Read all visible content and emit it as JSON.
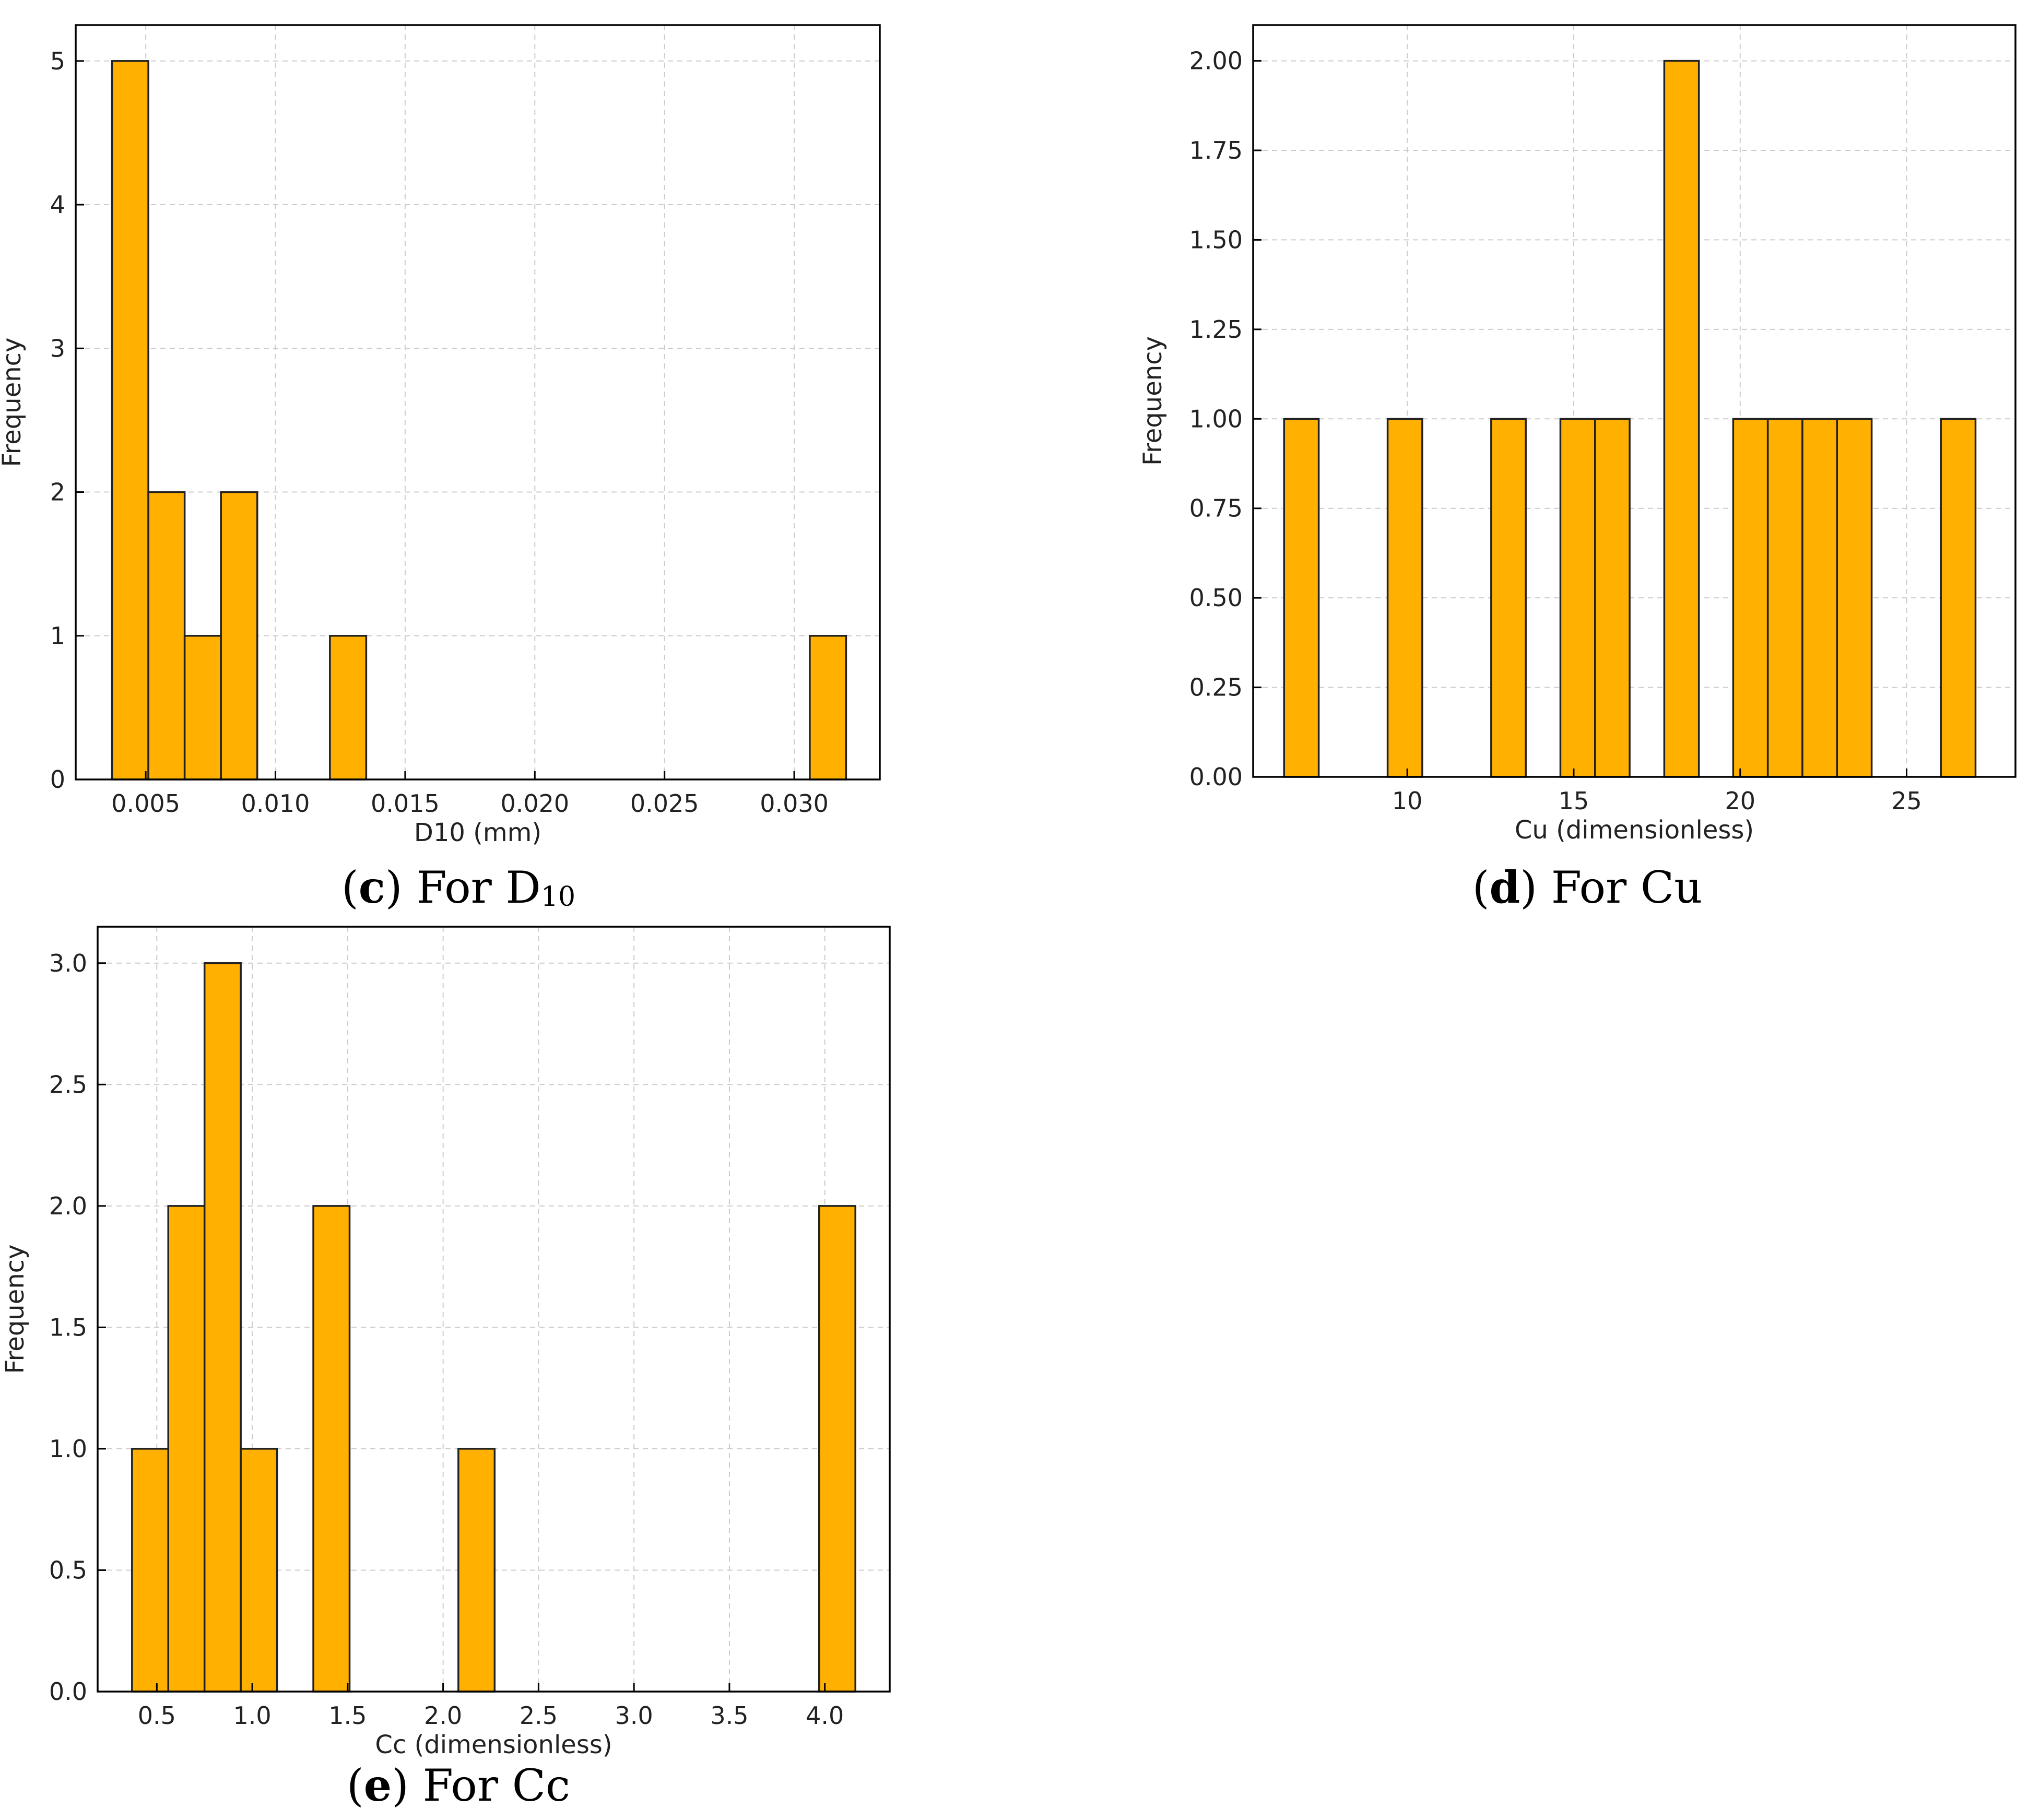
{
  "colors": {
    "bar_fill": "#ffb000",
    "bar_edge": "#222222",
    "grid": "#cccccc",
    "axis": "#000000"
  },
  "captions": {
    "c": {
      "letter": "c",
      "text": "For D",
      "sub": "10"
    },
    "d": {
      "letter": "d",
      "text": "For Cu"
    },
    "e": {
      "letter": "e",
      "text": "For Cc"
    }
  },
  "chart_data": [
    {
      "id": "c",
      "type": "bar",
      "title": "",
      "xlabel": "D10 (mm)",
      "ylabel": "Frequency",
      "xlim": [
        0.0023,
        0.0333
      ],
      "ylim": [
        0,
        5.25
      ],
      "xticks": [
        0.005,
        0.01,
        0.015,
        0.02,
        0.025,
        0.03
      ],
      "xtick_labels": [
        "0.005",
        "0.010",
        "0.015",
        "0.020",
        "0.025",
        "0.030"
      ],
      "yticks": [
        0,
        1,
        2,
        3,
        4,
        5
      ],
      "ytick_labels": [
        "0",
        "1",
        "2",
        "3",
        "4",
        "5"
      ],
      "grid": true,
      "bins": [
        {
          "x0": 0.0037,
          "x1": 0.0051,
          "count": 5
        },
        {
          "x0": 0.0051,
          "x1": 0.0065,
          "count": 2
        },
        {
          "x0": 0.0065,
          "x1": 0.0079,
          "count": 1
        },
        {
          "x0": 0.0079,
          "x1": 0.0093,
          "count": 2
        },
        {
          "x0": 0.0121,
          "x1": 0.0135,
          "count": 1
        },
        {
          "x0": 0.0306,
          "x1": 0.032,
          "count": 1
        }
      ]
    },
    {
      "id": "d",
      "type": "bar",
      "title": "",
      "xlabel": "Cu (dimensionless)",
      "ylabel": "Frequency",
      "xlim": [
        5.37,
        28.27
      ],
      "ylim": [
        0,
        2.1
      ],
      "xticks": [
        10,
        15,
        20,
        25
      ],
      "xtick_labels": [
        "10",
        "15",
        "20",
        "25"
      ],
      "yticks": [
        0.0,
        0.25,
        0.5,
        0.75,
        1.0,
        1.25,
        1.5,
        1.75,
        2.0
      ],
      "ytick_labels": [
        "0.00",
        "0.25",
        "0.50",
        "0.75",
        "1.00",
        "1.25",
        "1.50",
        "1.75",
        "2.00"
      ],
      "grid": true,
      "bins": [
        {
          "x0": 6.3,
          "x1": 7.34,
          "count": 1
        },
        {
          "x0": 9.41,
          "x1": 10.45,
          "count": 1
        },
        {
          "x0": 12.52,
          "x1": 13.56,
          "count": 1
        },
        {
          "x0": 14.6,
          "x1": 15.64,
          "count": 1
        },
        {
          "x0": 15.64,
          "x1": 16.68,
          "count": 1
        },
        {
          "x0": 17.72,
          "x1": 18.76,
          "count": 2
        },
        {
          "x0": 19.79,
          "x1": 20.83,
          "count": 1
        },
        {
          "x0": 20.83,
          "x1": 21.87,
          "count": 1
        },
        {
          "x0": 21.87,
          "x1": 22.91,
          "count": 1
        },
        {
          "x0": 22.91,
          "x1": 23.95,
          "count": 1
        },
        {
          "x0": 26.03,
          "x1": 27.07,
          "count": 1
        }
      ]
    },
    {
      "id": "e",
      "type": "bar",
      "title": "",
      "xlabel": "Cc (dimensionless)",
      "ylabel": "Frequency",
      "xlim": [
        0.19,
        4.34
      ],
      "ylim": [
        0,
        3.15
      ],
      "xticks": [
        0.5,
        1.0,
        1.5,
        2.0,
        2.5,
        3.0,
        3.5,
        4.0
      ],
      "xtick_labels": [
        "0.5",
        "1.0",
        "1.5",
        "2.0",
        "2.5",
        "3.0",
        "3.5",
        "4.0"
      ],
      "yticks": [
        0.0,
        0.5,
        1.0,
        1.5,
        2.0,
        2.5,
        3.0
      ],
      "ytick_labels": [
        "0.0",
        "0.5",
        "1.0",
        "1.5",
        "2.0",
        "2.5",
        "3.0"
      ],
      "grid": true,
      "bins": [
        {
          "x0": 0.37,
          "x1": 0.56,
          "count": 1
        },
        {
          "x0": 0.56,
          "x1": 0.75,
          "count": 2
        },
        {
          "x0": 0.75,
          "x1": 0.94,
          "count": 3
        },
        {
          "x0": 0.94,
          "x1": 1.13,
          "count": 1
        },
        {
          "x0": 1.32,
          "x1": 1.51,
          "count": 2
        },
        {
          "x0": 2.08,
          "x1": 2.27,
          "count": 1
        },
        {
          "x0": 3.97,
          "x1": 4.16,
          "count": 2
        }
      ]
    }
  ]
}
